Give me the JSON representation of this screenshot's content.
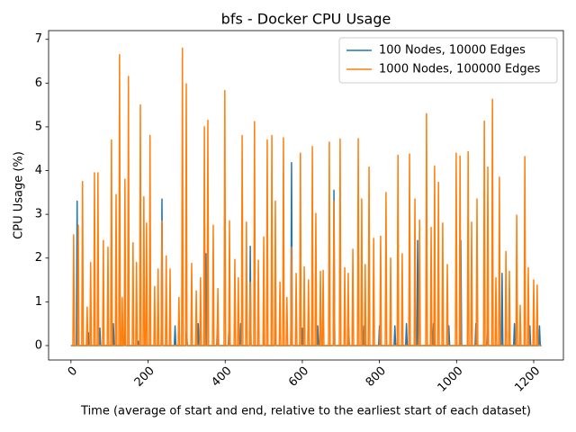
{
  "chart_data": {
    "type": "line",
    "title": "bfs - Docker CPU Usage",
    "x_label": "Time (average of start and end, relative to the earliest start of each dataset)",
    "y_label": "CPU Usage (%)",
    "xlim": [
      -58,
      1277
    ],
    "ylim": [
      -0.33,
      7.2
    ],
    "xticks": [
      0,
      200,
      400,
      600,
      800,
      1000,
      1200
    ],
    "yticks": [
      0,
      1,
      2,
      3,
      4,
      5,
      6,
      7
    ],
    "grid": false,
    "legend": "upper right",
    "series": [
      {
        "name": "100 Nodes, 10000 Edges",
        "color": "#1f77b4",
        "x": [
          0,
          14,
          16,
          18,
          43,
          45,
          47,
          73,
          75,
          77,
          108,
          110,
          112,
          138,
          140,
          142,
          173,
          175,
          177,
          234,
          236,
          238,
          268,
          270,
          272,
          298,
          300,
          302,
          328,
          330,
          332,
          348,
          350,
          352,
          378,
          380,
          382,
          408,
          410,
          412,
          438,
          440,
          442,
          463,
          465,
          467,
          498,
          500,
          502,
          528,
          530,
          532,
          570,
          572,
          574,
          598,
          600,
          602,
          638,
          640,
          642,
          680,
          682,
          684,
          718,
          720,
          722,
          758,
          760,
          762,
          798,
          800,
          802,
          838,
          840,
          842,
          868,
          870,
          872,
          897,
          899,
          901,
          938,
          940,
          942,
          978,
          980,
          982,
          1009,
          1011,
          1013,
          1048,
          1050,
          1052,
          1078,
          1080,
          1082,
          1116,
          1118,
          1120,
          1148,
          1150,
          1152,
          1188,
          1190,
          1192,
          1213,
          1215,
          1217,
          1220
        ],
        "values": [
          0,
          0,
          3.3,
          0,
          0,
          0.3,
          0,
          0,
          0.4,
          0,
          0,
          0.5,
          0,
          0,
          0.45,
          0,
          0,
          0.1,
          0,
          0,
          3.35,
          0,
          0,
          0.45,
          0,
          0,
          0.3,
          0,
          0,
          0.5,
          0,
          0,
          2.1,
          0,
          0,
          0.5,
          0,
          0,
          0.45,
          0,
          0,
          0.5,
          0,
          0,
          2.27,
          0,
          0,
          0.3,
          0,
          0,
          0.45,
          0,
          0,
          4.18,
          0,
          0,
          0.4,
          0,
          0,
          0.45,
          0,
          0,
          3.55,
          0,
          0,
          0.45,
          0,
          0,
          0.45,
          0,
          0,
          0.45,
          0,
          0,
          0.45,
          0,
          0,
          0.5,
          0,
          0,
          2.4,
          0,
          0,
          0.5,
          0,
          0,
          0.45,
          0,
          0,
          2.4,
          0,
          0,
          0.5,
          0,
          0,
          0.5,
          0,
          0,
          1.65,
          0,
          0,
          0.5,
          0,
          0,
          0.45,
          0,
          0,
          0.45,
          0,
          0
        ]
      },
      {
        "name": "1000 Nodes, 100000 Edges",
        "color": "#ff7f0e",
        "x": [
          0,
          5,
          7,
          9,
          17,
          19,
          21,
          28,
          30,
          32,
          40,
          42,
          44,
          49,
          51,
          53,
          59,
          61,
          63,
          68,
          70,
          72,
          82,
          84,
          86,
          94,
          96,
          98,
          103,
          105,
          107,
          115,
          117,
          119,
          124,
          126,
          128,
          131,
          133,
          135,
          138,
          140,
          142,
          147,
          149,
          151,
          159,
          161,
          163,
          168,
          170,
          172,
          178,
          180,
          182,
          187,
          189,
          191,
          194,
          196,
          198,
          203,
          205,
          207,
          215,
          217,
          219,
          224,
          226,
          228,
          234,
          236,
          238,
          245,
          247,
          249,
          255,
          257,
          259,
          278,
          280,
          282,
          287,
          289,
          291,
          297,
          299,
          301,
          311,
          313,
          315,
          323,
          325,
          327,
          334,
          336,
          338,
          344,
          346,
          348,
          353,
          355,
          357,
          367,
          369,
          371,
          379,
          381,
          383,
          397,
          399,
          401,
          409,
          411,
          413,
          423,
          425,
          427,
          432,
          434,
          436,
          442,
          444,
          446,
          453,
          455,
          457,
          463,
          465,
          467,
          474,
          476,
          478,
          484,
          486,
          488,
          498,
          500,
          502,
          507,
          509,
          511,
          519,
          521,
          523,
          528,
          530,
          532,
          540,
          542,
          544,
          549,
          551,
          553,
          558,
          560,
          562,
          570,
          572,
          574,
          582,
          584,
          586,
          593,
          595,
          597,
          603,
          605,
          607,
          614,
          616,
          618,
          624,
          626,
          628,
          633,
          635,
          637,
          645,
          647,
          649,
          652,
          654,
          656,
          668,
          670,
          672,
          680,
          682,
          684,
          696,
          698,
          700,
          708,
          710,
          712,
          717,
          719,
          721,
          729,
          731,
          733,
          743,
          745,
          747,
          752,
          754,
          756,
          761,
          763,
          765,
          771,
          773,
          775,
          783,
          785,
          787,
          801,
          803,
          805,
          815,
          817,
          819,
          827,
          829,
          831,
          846,
          848,
          850,
          857,
          859,
          861,
          876,
          878,
          880,
          890,
          892,
          894,
          902,
          904,
          906,
          920,
          922,
          924,
          932,
          934,
          936,
          941,
          943,
          945,
          951,
          953,
          955,
          962,
          964,
          966,
          974,
          976,
          978,
          997,
          999,
          1001,
          1007,
          1009,
          1011,
          1028,
          1030,
          1032,
          1037,
          1039,
          1041,
          1051,
          1053,
          1055,
          1070,
          1072,
          1074,
          1079,
          1081,
          1083,
          1091,
          1093,
          1095,
          1100,
          1102,
          1104,
          1109,
          1111,
          1113,
          1126,
          1128,
          1130,
          1135,
          1137,
          1139,
          1154,
          1156,
          1158,
          1163,
          1165,
          1167,
          1175,
          1177,
          1179,
          1184,
          1186,
          1188,
          1198,
          1200,
          1202,
          1207,
          1209,
          1211,
          1218
        ],
        "values": [
          0,
          0,
          2.53,
          0,
          0,
          2.75,
          0,
          0,
          3.75,
          0,
          0,
          0.88,
          0,
          0,
          1.9,
          0,
          0,
          3.95,
          0,
          0,
          3.95,
          0,
          0,
          2.4,
          0,
          0,
          2.25,
          0,
          0,
          4.7,
          0,
          0,
          3.45,
          0,
          0,
          6.65,
          0,
          0,
          1.1,
          0,
          0,
          3.8,
          0,
          0,
          6.15,
          0,
          0,
          2.35,
          0,
          0,
          1.9,
          0,
          0,
          5.5,
          0,
          0,
          3.4,
          0,
          0,
          2.8,
          0,
          0,
          4.8,
          0,
          0,
          1.35,
          0,
          0,
          1.75,
          0,
          0,
          2.85,
          0,
          0,
          2.05,
          0,
          0,
          1.75,
          0,
          0,
          1.1,
          0,
          0,
          6.8,
          0,
          0,
          5.98,
          0,
          0,
          1.88,
          0,
          0,
          1.25,
          0,
          0,
          1.55,
          0,
          0,
          5.0,
          0,
          0,
          5.15,
          0,
          0,
          2.75,
          0,
          0,
          1.3,
          0,
          0,
          5.83,
          0,
          0,
          2.85,
          0,
          0,
          1.97,
          0,
          0,
          1.55,
          0,
          0,
          4.8,
          0,
          0,
          2.82,
          0,
          0,
          1.45,
          0,
          0,
          5.12,
          0,
          0,
          1.95,
          0,
          0,
          2.48,
          0,
          0,
          4.7,
          0,
          0,
          4.8,
          0,
          0,
          3.3,
          0,
          0,
          1.45,
          0,
          0,
          4.75,
          0,
          0,
          1.1,
          0,
          0,
          2.25,
          0,
          0,
          1.65,
          0,
          0,
          4.4,
          0,
          0,
          1.8,
          0,
          0,
          1.5,
          0,
          0,
          4.55,
          0,
          0,
          3.02,
          0,
          0,
          1.7,
          0,
          0,
          1.72,
          0,
          0,
          4.65,
          0,
          0,
          3.3,
          0,
          0,
          4.72,
          0,
          0,
          1.78,
          0,
          0,
          1.65,
          0,
          0,
          2.2,
          0,
          0,
          4.73,
          0,
          0,
          3.35,
          0,
          0,
          1.85,
          0,
          0,
          4.08,
          0,
          0,
          2.45,
          0,
          0,
          2.5,
          0,
          0,
          3.5,
          0,
          0,
          2.0,
          0,
          0,
          4.35,
          0,
          0,
          2.1,
          0,
          0,
          4.38,
          0,
          0,
          3.35,
          0,
          0,
          2.87,
          0,
          0,
          5.3,
          0,
          0,
          2.7,
          0,
          0,
          4.1,
          0,
          0,
          3.73,
          0,
          0,
          2.8,
          0,
          0,
          1.85,
          0,
          0,
          4.4,
          0,
          0,
          4.33,
          0,
          0,
          4.43,
          0,
          0,
          2.82,
          0,
          0,
          3.35,
          0,
          0,
          5.13,
          0,
          0,
          4.08,
          0,
          0,
          5.63,
          0,
          0,
          1.55,
          0,
          0,
          3.85,
          0,
          0,
          2.15,
          0,
          0,
          1.7,
          0,
          0,
          2.98,
          0,
          0,
          0.92,
          0,
          0,
          4.32,
          0,
          0,
          1.78,
          0,
          0,
          1.5,
          0,
          0,
          1.38,
          0,
          0
        ]
      }
    ]
  }
}
